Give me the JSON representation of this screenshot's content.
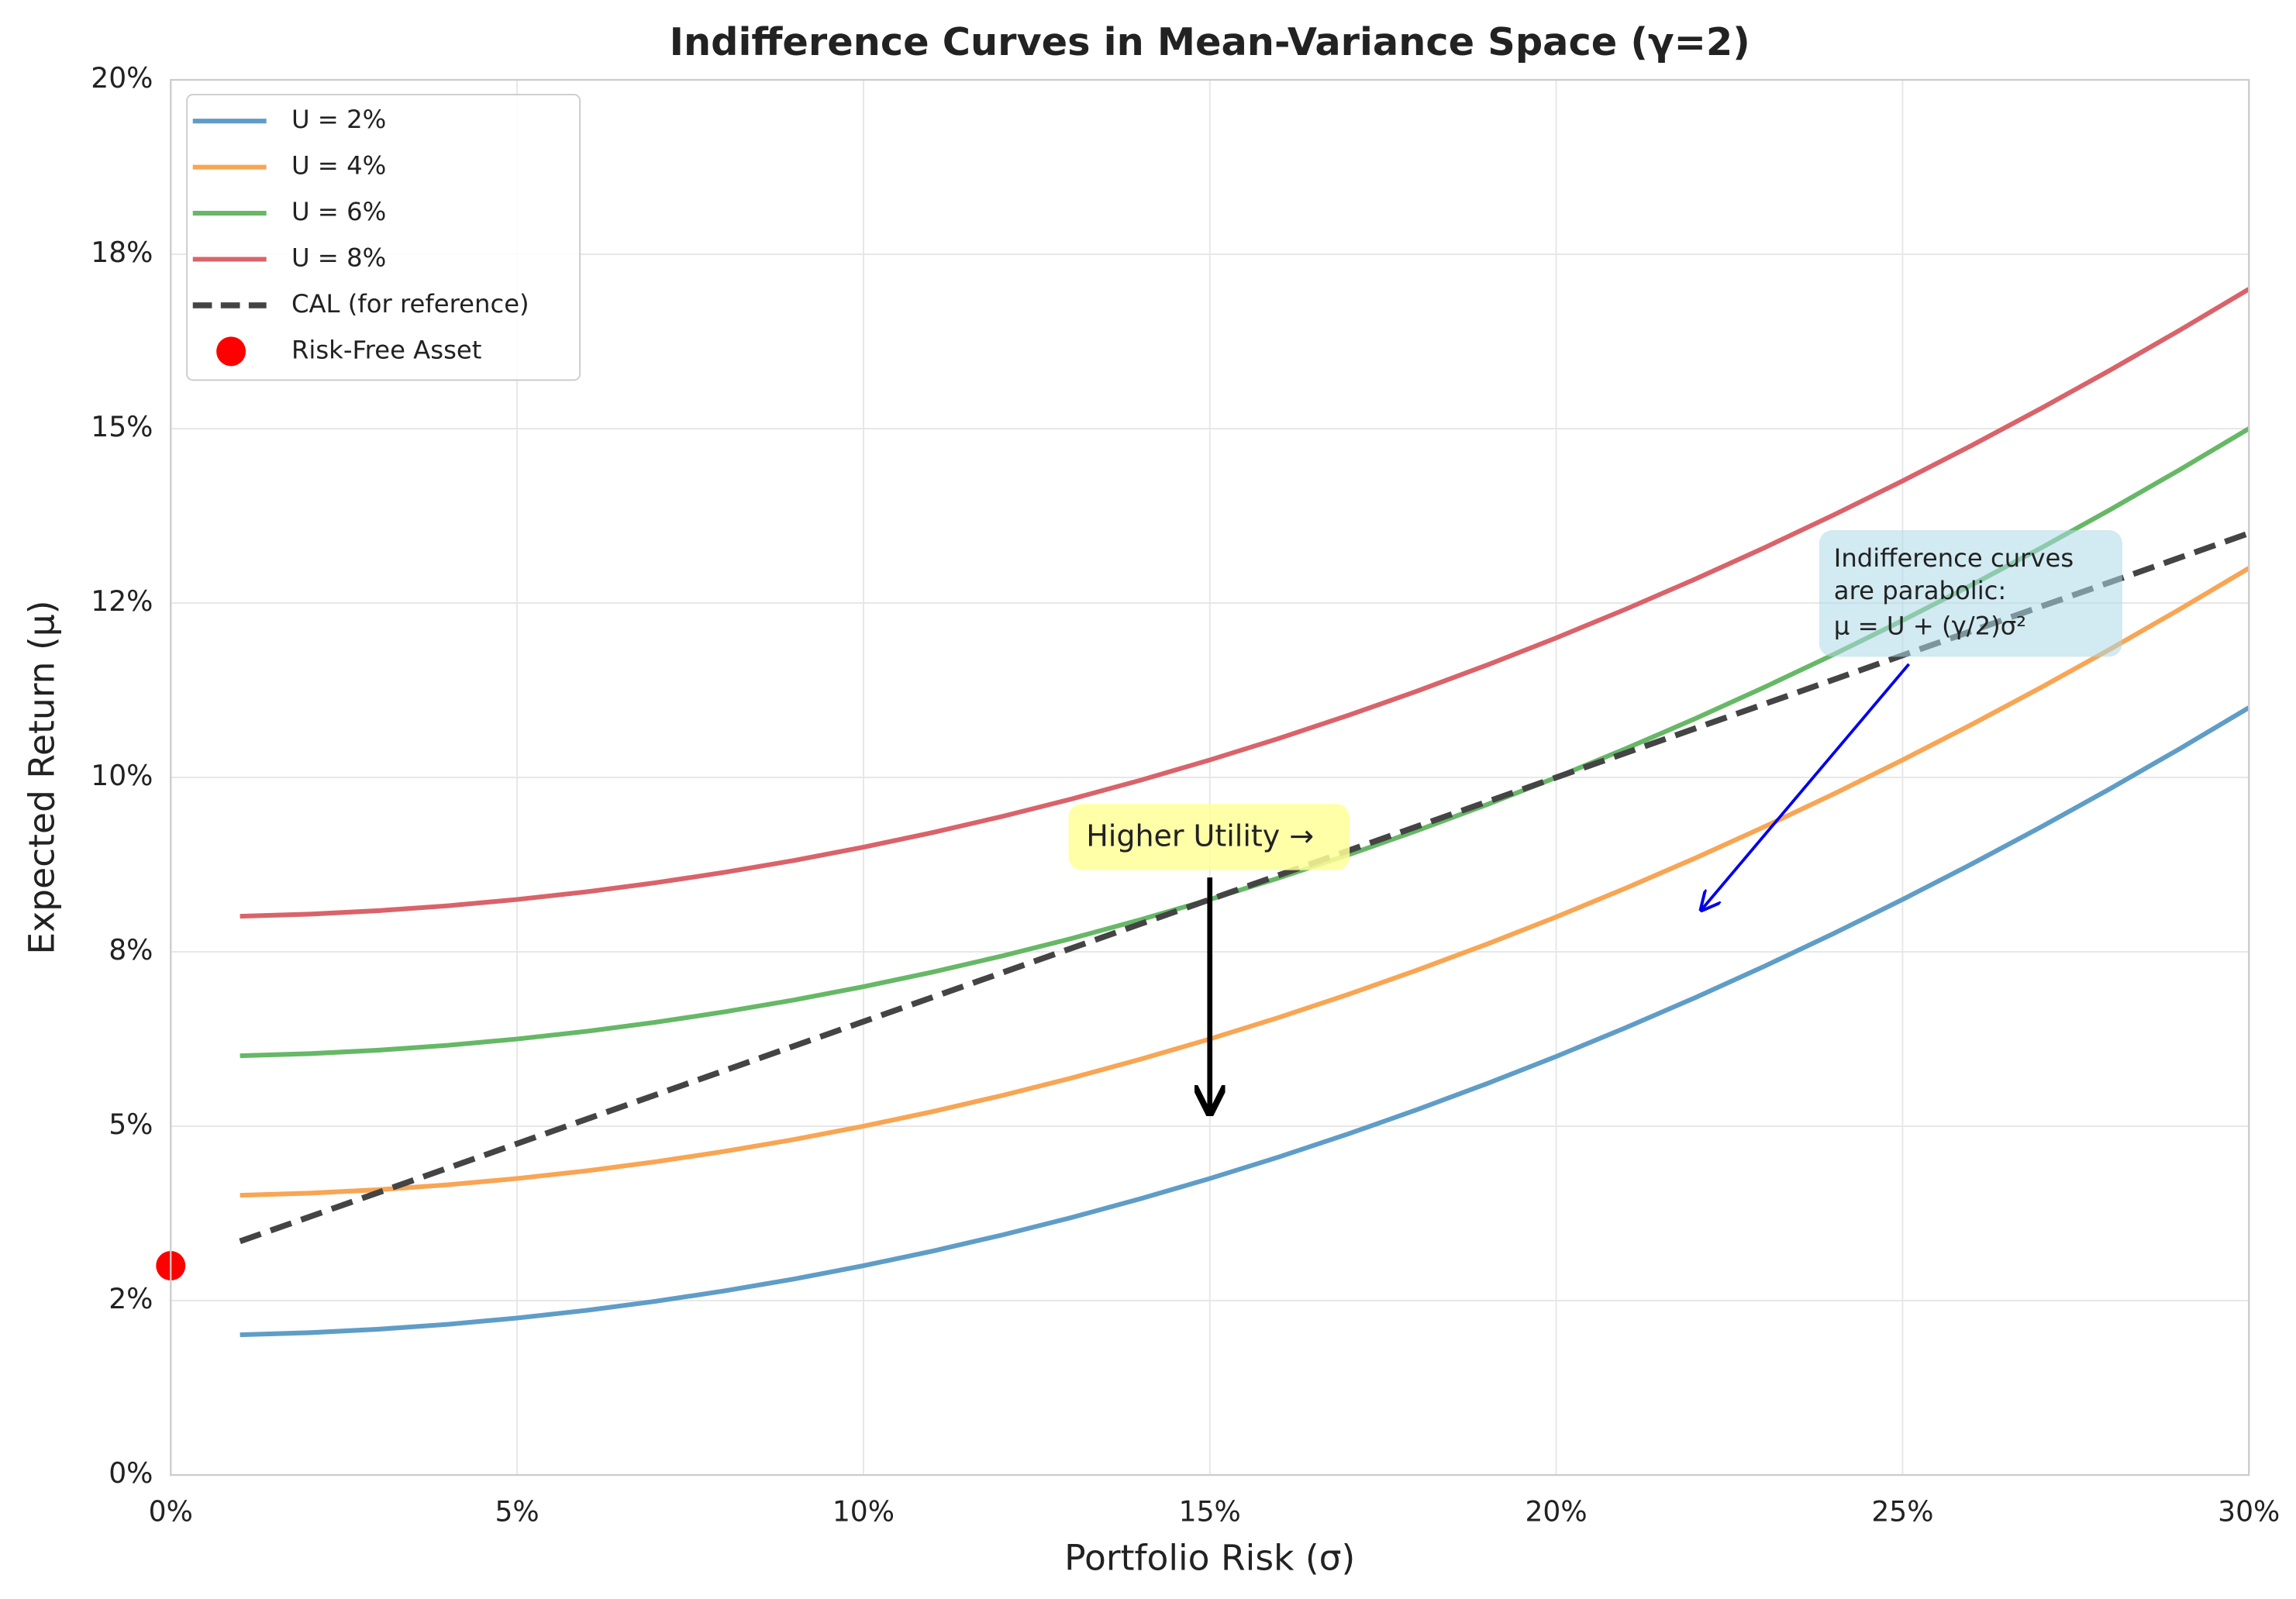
{
  "chart_data": {
    "type": "line",
    "title": "Indifference Curves in Mean-Variance Space (γ=2)",
    "x_label": "Portfolio Risk (σ)",
    "y_label": "Expected Return (μ)",
    "x": [
      1,
      2,
      3,
      4,
      5,
      6,
      7,
      8,
      9,
      10,
      11,
      12,
      13,
      14,
      15,
      16,
      17,
      18,
      19,
      20,
      21,
      22,
      23,
      24,
      25,
      26,
      27,
      28,
      29,
      30
    ],
    "series": [
      {
        "name": "U = 2%",
        "color": "#5f9dc7",
        "style": "solid",
        "values": [
          2.01,
          2.04,
          2.09,
          2.16,
          2.25,
          2.36,
          2.49,
          2.64,
          2.81,
          3,
          3.21,
          3.44,
          3.69,
          3.96,
          4.25,
          4.56,
          4.89,
          5.24,
          5.61,
          6,
          6.41,
          6.84,
          7.29,
          7.76,
          8.25,
          8.76,
          9.29,
          9.84,
          10.41,
          11
        ]
      },
      {
        "name": "U = 4%",
        "color": "#f8a554",
        "style": "solid",
        "values": [
          4.01,
          4.04,
          4.09,
          4.16,
          4.25,
          4.36,
          4.49,
          4.64,
          4.81,
          5,
          5.21,
          5.44,
          5.69,
          5.96,
          6.25,
          6.56,
          6.89,
          7.24,
          7.61,
          8,
          8.41,
          8.84,
          9.29,
          9.76,
          10.25,
          10.76,
          11.29,
          11.84,
          12.41,
          13
        ]
      },
      {
        "name": "U = 6%",
        "color": "#66b866",
        "style": "solid",
        "values": [
          6.01,
          6.04,
          6.09,
          6.16,
          6.25,
          6.36,
          6.49,
          6.64,
          6.81,
          7,
          7.21,
          7.44,
          7.69,
          7.96,
          8.25,
          8.56,
          8.89,
          9.24,
          9.61,
          10,
          10.41,
          10.84,
          11.29,
          11.76,
          12.25,
          12.76,
          13.29,
          13.84,
          14.41,
          15
        ]
      },
      {
        "name": "U = 8%",
        "color": "#d9636a",
        "style": "solid",
        "values": [
          8.01,
          8.04,
          8.09,
          8.16,
          8.25,
          8.36,
          8.49,
          8.64,
          8.81,
          9,
          9.21,
          9.44,
          9.69,
          9.96,
          10.25,
          10.56,
          10.89,
          11.24,
          11.61,
          12,
          12.41,
          12.84,
          13.29,
          13.76,
          14.25,
          14.76,
          15.29,
          15.84,
          16.41,
          17
        ]
      },
      {
        "name": "CAL (for reference)",
        "color": "#444444",
        "style": "dashed",
        "x": [
          1,
          30
        ],
        "values": [
          3.35,
          13.5
        ]
      },
      {
        "name": "Risk-Free Asset",
        "color": "#ff0000",
        "style": "marker",
        "x": [
          0
        ],
        "values": [
          3
        ]
      }
    ],
    "xlim": [
      0,
      30
    ],
    "xticks": [
      {
        "value": 0,
        "label": "0%"
      },
      {
        "value": 5,
        "label": "5%"
      },
      {
        "value": 10,
        "label": "10%"
      },
      {
        "value": 15,
        "label": "15%"
      },
      {
        "value": 20,
        "label": "20%"
      },
      {
        "value": 25,
        "label": "25%"
      },
      {
        "value": 30,
        "label": "30%"
      }
    ],
    "ylim": [
      0,
      20
    ],
    "yticks": [
      {
        "value": 0,
        "label": "0%"
      },
      {
        "value": 2.5,
        "label": "2%"
      },
      {
        "value": 5,
        "label": "5%"
      },
      {
        "value": 7.5,
        "label": "8%"
      },
      {
        "value": 10,
        "label": "10%"
      },
      {
        "value": 12.5,
        "label": "12%"
      },
      {
        "value": 15,
        "label": "15%"
      },
      {
        "value": 17.5,
        "label": "18%"
      },
      {
        "value": 20,
        "label": "20%"
      }
    ],
    "grid": true,
    "legend": "upper left",
    "annotations": [
      "Higher Utility →",
      "Indifference curves",
      "are parabolic:",
      "μ = U + (γ/2)σ²"
    ]
  }
}
